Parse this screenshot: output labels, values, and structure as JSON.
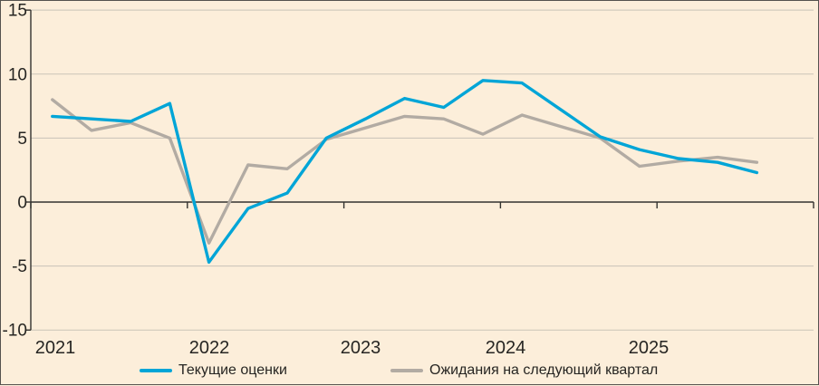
{
  "chart_data": {
    "type": "line",
    "title": "",
    "xlabel": "",
    "ylabel": "",
    "ylim": [
      -10,
      15
    ],
    "y_ticks": [
      15,
      10,
      5,
      0,
      -5,
      -10
    ],
    "y_tick_labels": [
      "15",
      "10",
      "5",
      "0",
      "-5",
      "-10"
    ],
    "x_year_labels": [
      "2021",
      "2022",
      "2023",
      "2024",
      "2025"
    ],
    "grid": true,
    "legend_position": "bottom",
    "periods": [
      "2021 Q1",
      "2021 Q2",
      "2021 Q3",
      "2021 Q4",
      "2022 Q1",
      "2022 Q2",
      "2022 Q3",
      "2022 Q4",
      "2023 Q1",
      "2023 Q2",
      "2023 Q3",
      "2023 Q4",
      "2024 Q1",
      "2024 Q2",
      "2024 Q3",
      "2024 Q4",
      "2025 Q1",
      "2025 Q2",
      "2025 Q3"
    ],
    "series": [
      {
        "name": "Текущие оценки",
        "color": "#00a5d7",
        "values": [
          6.7,
          6.5,
          6.3,
          7.7,
          -4.7,
          -0.5,
          0.7,
          5.0,
          6.5,
          8.1,
          7.4,
          9.5,
          9.3,
          7.2,
          5.1,
          4.1,
          3.4,
          3.1,
          2.3
        ]
      },
      {
        "name": "Ожидания на следующий квартал",
        "color": "#b2aba3",
        "values": [
          8.0,
          5.6,
          6.2,
          5.0,
          -3.2,
          2.9,
          2.6,
          4.9,
          5.8,
          6.7,
          6.5,
          5.3,
          6.8,
          5.9,
          5.0,
          2.8,
          3.2,
          3.5,
          3.1
        ]
      }
    ],
    "colors": {
      "background": "#fceeda",
      "gridline": "#c9c3b8",
      "axis": "#33322f",
      "text": "#262522"
    }
  }
}
